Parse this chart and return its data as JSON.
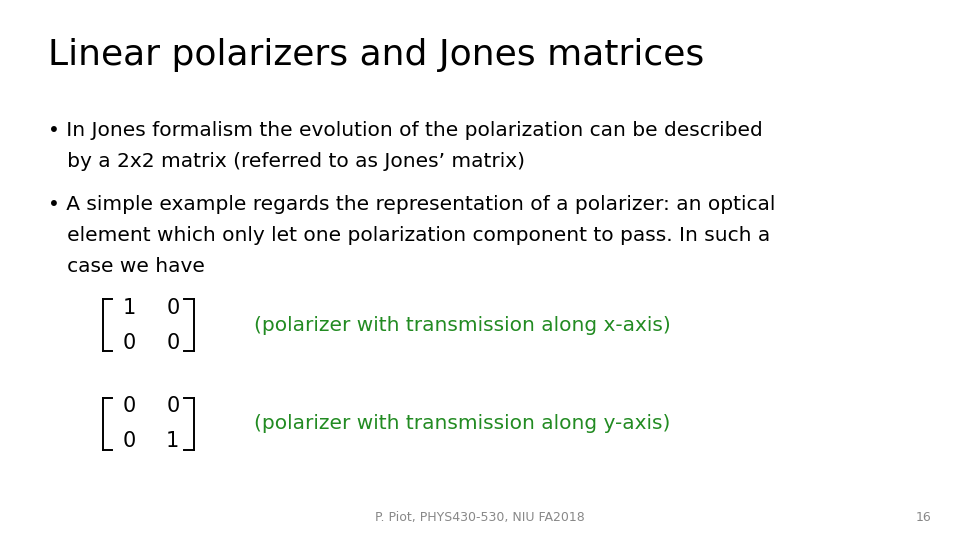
{
  "title": "Linear polarizers and Jones matrices",
  "title_fontsize": 26,
  "title_color": "#000000",
  "bullet1_line1": "• In Jones formalism the evolution of the polarization can be described",
  "bullet1_line2": "   by a 2x2 matrix (referred to as Jones’ matrix)",
  "bullet2_line1": "• A simple example regards the representation of a polarizer: an optical",
  "bullet2_line2": "   element which only let one polarization component to pass. In such a",
  "bullet2_line3": "   case we have",
  "body_fontsize": 14.5,
  "body_color": "#000000",
  "matrix1_rows": [
    [
      "1",
      "0"
    ],
    [
      "0",
      "0"
    ]
  ],
  "matrix2_rows": [
    [
      "0",
      "0"
    ],
    [
      "0",
      "1"
    ]
  ],
  "label1": "(polarizer with transmission along x-axis)",
  "label2": "(polarizer with transmission along y-axis)",
  "label_color": "#228B22",
  "label_fontsize": 14.5,
  "footer": "P. Piot, PHYS430-530, NIU FA2018",
  "footer_page": "16",
  "footer_fontsize": 9,
  "footer_color": "#888888",
  "background_color": "#ffffff",
  "matrix_fontsize": 15
}
